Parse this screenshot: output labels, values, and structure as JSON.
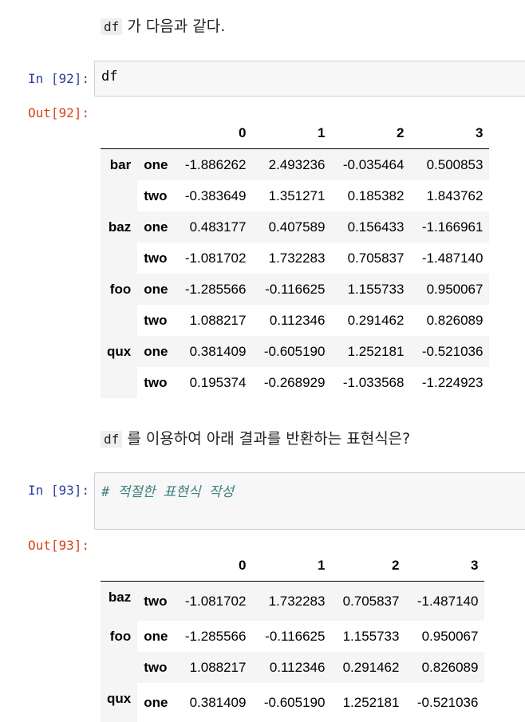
{
  "intro": {
    "code": "df",
    "text": "가 다음과 같다."
  },
  "cell92": {
    "in_prompt": "In [92]:",
    "code": "df",
    "out_prompt": "Out[92]:"
  },
  "table92": {
    "columns": [
      "0",
      "1",
      "2",
      "3"
    ],
    "groups": [
      {
        "label": "bar",
        "rows": [
          {
            "sub": "one",
            "values": [
              "-1.886262",
              "2.493236",
              "-0.035464",
              "0.500853"
            ]
          },
          {
            "sub": "two",
            "values": [
              "-0.383649",
              "1.351271",
              "0.185382",
              "1.843762"
            ]
          }
        ]
      },
      {
        "label": "baz",
        "rows": [
          {
            "sub": "one",
            "values": [
              "0.483177",
              "0.407589",
              "0.156433",
              "-1.166961"
            ]
          },
          {
            "sub": "two",
            "values": [
              "-1.081702",
              "1.732283",
              "0.705837",
              "-1.487140"
            ]
          }
        ]
      },
      {
        "label": "foo",
        "rows": [
          {
            "sub": "one",
            "values": [
              "-1.285566",
              "-0.116625",
              "1.155733",
              "0.950067"
            ]
          },
          {
            "sub": "two",
            "values": [
              "1.088217",
              "0.112346",
              "0.291462",
              "0.826089"
            ]
          }
        ]
      },
      {
        "label": "qux",
        "rows": [
          {
            "sub": "one",
            "values": [
              "0.381409",
              "-0.605190",
              "1.252181",
              "-0.521036"
            ]
          },
          {
            "sub": "two",
            "values": [
              "0.195374",
              "-0.268929",
              "-1.033568",
              "-1.224923"
            ]
          }
        ]
      }
    ]
  },
  "question": {
    "code": "df",
    "text": "를 이용하여 아래 결과를 반환하는 표현식은?"
  },
  "cell93": {
    "in_prompt": "In [93]:",
    "comment": "# 적절한 표현식 작성",
    "out_prompt": "Out[93]:"
  },
  "table93": {
    "columns": [
      "0",
      "1",
      "2",
      "3"
    ],
    "groups": [
      {
        "label": "baz",
        "rows": [
          {
            "sub": "two",
            "values": [
              "-1.081702",
              "1.732283",
              "0.705837",
              "-1.487140"
            ]
          }
        ]
      },
      {
        "label": "foo",
        "rows": [
          {
            "sub": "one",
            "values": [
              "-1.285566",
              "-0.116625",
              "1.155733",
              "0.950067"
            ]
          },
          {
            "sub": "two",
            "values": [
              "1.088217",
              "0.112346",
              "0.291462",
              "0.826089"
            ]
          }
        ]
      },
      {
        "label": "qux",
        "rows": [
          {
            "sub": "one",
            "values": [
              "0.381409",
              "-0.605190",
              "1.252181",
              "-0.521036"
            ]
          }
        ]
      }
    ]
  }
}
